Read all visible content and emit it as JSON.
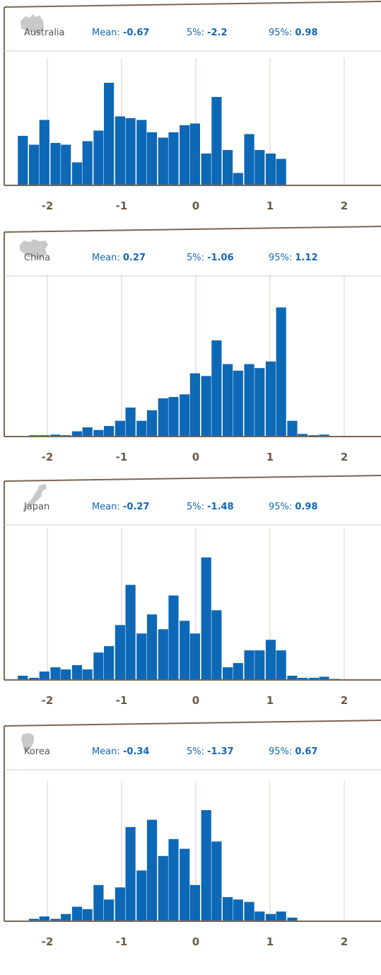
{
  "style": {
    "bar_color": "#0d68b6",
    "frame_color": "#7a6654",
    "grid_color": "#d9cfc3",
    "text_color": "#6b5a48",
    "stat_color": "#1366b5",
    "map_color": "#c9c9c9"
  },
  "stat_labels": {
    "mean": "Mean:",
    "p5": "5%:",
    "p95": "95%:"
  },
  "chart_data": [
    {
      "type": "bar",
      "country": "Australia",
      "map_icon": "australia-map-icon",
      "stats": {
        "mean": "-0.67",
        "p5": "-2.2",
        "p95": "0.98"
      },
      "x_ticks": [
        "-2",
        "-1",
        "0",
        "1",
        "2"
      ],
      "xlim": [
        -2.4,
        2.5
      ],
      "bin_width": 0.145,
      "x": [
        -2.33,
        -2.18,
        -2.04,
        -1.89,
        -1.75,
        -1.6,
        -1.46,
        -1.31,
        -1.17,
        -1.02,
        -0.88,
        -0.73,
        -0.59,
        -0.44,
        -0.3,
        -0.15,
        -0.01,
        0.14,
        0.28,
        0.43,
        0.57,
        0.72,
        0.86,
        1.01,
        1.15
      ],
      "values": [
        28,
        23,
        37,
        24,
        23,
        13,
        25,
        31,
        58,
        39,
        38,
        37,
        30,
        27,
        30,
        34,
        35,
        18,
        50,
        20,
        7,
        29,
        20,
        18,
        15
      ],
      "ylim": [
        0,
        72
      ]
    },
    {
      "type": "bar",
      "country": "China",
      "map_icon": "china-map-icon",
      "stats": {
        "mean": "0.27",
        "p5": "-1.06",
        "p95": "1.12"
      },
      "x_ticks": [
        "-2",
        "-1",
        "0",
        "1",
        "2"
      ],
      "xlim": [
        -2.4,
        2.5
      ],
      "bin_width": 0.145,
      "x": [
        -2.33,
        -2.18,
        -2.04,
        -1.89,
        -1.75,
        -1.6,
        -1.46,
        -1.31,
        -1.17,
        -1.02,
        -0.88,
        -0.73,
        -0.59,
        -0.44,
        -0.3,
        -0.15,
        -0.01,
        0.14,
        0.28,
        0.43,
        0.57,
        0.72,
        0.86,
        1.01,
        1.15,
        1.3,
        1.44,
        1.59,
        1.73,
        1.88
      ],
      "values": [
        0.5,
        1,
        1,
        1.5,
        1,
        4,
        7,
        5,
        8,
        12,
        22,
        12,
        20,
        29,
        30,
        32,
        48,
        46,
        73,
        55,
        50,
        55,
        52,
        57,
        98,
        12,
        2,
        1,
        1.5,
        0.5
      ],
      "ylim": [
        0,
        123
      ]
    },
    {
      "type": "bar",
      "country": "Japan",
      "map_icon": "japan-map-icon",
      "stats": {
        "mean": "-0.27",
        "p5": "-1.48",
        "p95": "0.98"
      },
      "x_ticks": [
        "-2",
        "-1",
        "0",
        "1",
        "2"
      ],
      "xlim": [
        -2.4,
        2.5
      ],
      "bin_width": 0.145,
      "x": [
        -2.33,
        -2.18,
        -2.04,
        -1.89,
        -1.75,
        -1.6,
        -1.46,
        -1.31,
        -1.17,
        -1.02,
        -0.88,
        -0.73,
        -0.59,
        -0.44,
        -0.3,
        -0.15,
        -0.01,
        0.14,
        0.28,
        0.43,
        0.57,
        0.72,
        0.86,
        1.01,
        1.15,
        1.3,
        1.44,
        1.59,
        1.73,
        1.88
      ],
      "values": [
        2,
        1,
        4,
        6,
        5,
        7,
        5,
        13,
        16,
        26,
        45,
        22,
        31,
        24,
        40,
        28,
        22,
        58,
        33,
        6,
        8,
        14,
        14,
        19,
        14,
        2,
        1,
        1,
        1.5,
        0.5
      ],
      "ylim": [
        0,
        72
      ]
    },
    {
      "type": "bar",
      "country": "Korea",
      "map_icon": "korea-map-icon",
      "stats": {
        "mean": "-0.34",
        "p5": "-1.37",
        "p95": "0.67"
      },
      "x_ticks": [
        "-2",
        "-1",
        "0",
        "1",
        "2"
      ],
      "xlim": [
        -2.4,
        2.5
      ],
      "bin_width": 0.145,
      "x": [
        -2.18,
        -2.04,
        -1.89,
        -1.75,
        -1.6,
        -1.46,
        -1.31,
        -1.17,
        -1.02,
        -0.88,
        -0.73,
        -0.59,
        -0.44,
        -0.3,
        -0.15,
        -0.01,
        0.14,
        0.28,
        0.43,
        0.57,
        0.72,
        0.86,
        1.01,
        1.15,
        1.3
      ],
      "values": [
        1,
        2,
        1,
        3,
        6,
        5,
        15,
        9,
        14,
        39,
        21,
        42,
        27,
        34,
        30,
        15,
        46,
        33,
        10,
        9,
        8,
        4,
        3,
        4,
        1.5
      ],
      "ylim": [
        0,
        58
      ]
    }
  ]
}
